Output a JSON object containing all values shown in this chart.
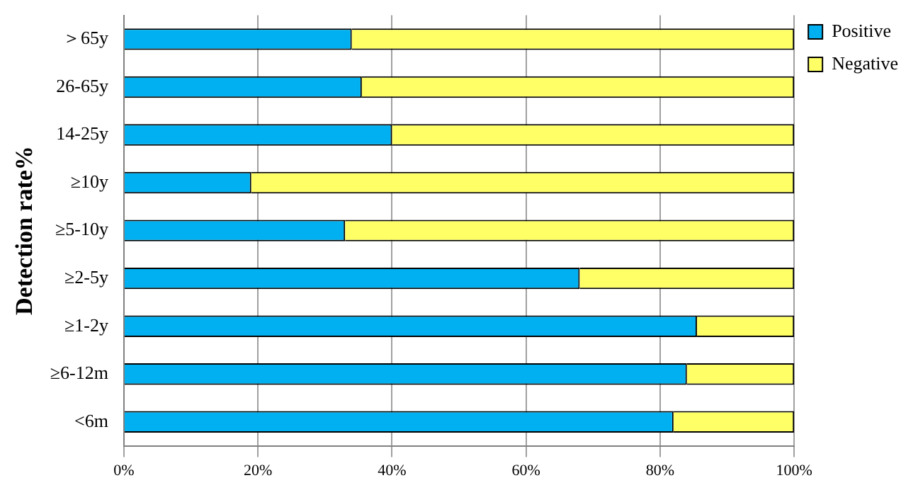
{
  "chart_data": {
    "type": "bar",
    "orientation": "horizontal",
    "stacked": true,
    "ylabel": "Detection rate%",
    "categories": [
      "＞65y",
      "26-65y",
      "14-25y",
      "≥10y",
      "≥5-10y",
      "≥2-5y",
      "≥1-2y",
      "≥6-12m",
      "<6m"
    ],
    "series": [
      {
        "name": "Positive",
        "color": "#00b0f0",
        "values": [
          34,
          35.5,
          40,
          19,
          33,
          68,
          85.5,
          84,
          82
        ]
      },
      {
        "name": "Negative",
        "color": "#ffff66",
        "values": [
          66,
          64.5,
          60,
          81,
          67,
          32,
          14.5,
          16,
          18
        ]
      }
    ],
    "xlim": [
      0,
      100
    ],
    "xticks": [
      {
        "value": 0,
        "label": "0%"
      },
      {
        "value": 20,
        "label": "20%"
      },
      {
        "value": 40,
        "label": "40%"
      },
      {
        "value": 60,
        "label": "60%"
      },
      {
        "value": 80,
        "label": "80%"
      },
      {
        "value": 100,
        "label": "100%"
      }
    ],
    "grid": "x",
    "legend": "top right"
  }
}
